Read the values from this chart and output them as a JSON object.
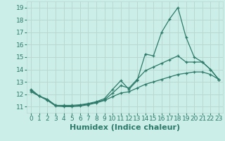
{
  "xlabel": "Humidex (Indice chaleur)",
  "bg_color": "#cceee8",
  "line_color": "#2d7a6a",
  "grid_color": "#b8d8d0",
  "xlim": [
    -0.5,
    23.5
  ],
  "ylim": [
    10.5,
    19.5
  ],
  "xticks": [
    0,
    1,
    2,
    3,
    4,
    5,
    6,
    7,
    8,
    9,
    10,
    11,
    12,
    13,
    14,
    15,
    16,
    17,
    18,
    19,
    20,
    21,
    22,
    23
  ],
  "yticks": [
    11,
    12,
    13,
    14,
    15,
    16,
    17,
    18,
    19
  ],
  "line1_x": [
    0,
    1,
    2,
    3,
    4,
    5,
    6,
    7,
    8,
    9,
    10,
    11,
    12,
    13,
    14,
    15,
    16,
    17,
    18,
    19,
    20,
    21,
    22,
    23
  ],
  "line1_y": [
    12.4,
    11.85,
    11.6,
    11.1,
    11.1,
    11.1,
    11.15,
    11.25,
    11.4,
    11.65,
    12.4,
    13.1,
    12.4,
    13.1,
    15.25,
    15.1,
    17.0,
    18.1,
    19.0,
    16.6,
    15.0,
    14.6,
    14.0,
    13.2
  ],
  "line2_x": [
    0,
    1,
    2,
    3,
    4,
    5,
    6,
    7,
    8,
    9,
    10,
    11,
    12,
    13,
    14,
    15,
    16,
    17,
    18,
    19,
    20,
    21,
    22,
    23
  ],
  "line2_y": [
    12.3,
    11.85,
    11.55,
    11.1,
    11.05,
    11.05,
    11.1,
    11.2,
    11.35,
    11.55,
    12.1,
    12.7,
    12.5,
    13.2,
    13.9,
    14.2,
    14.5,
    14.8,
    15.1,
    14.6,
    14.6,
    14.6,
    14.0,
    13.2
  ],
  "line3_x": [
    0,
    1,
    2,
    3,
    4,
    5,
    6,
    7,
    8,
    9,
    10,
    11,
    12,
    13,
    14,
    15,
    16,
    17,
    18,
    19,
    20,
    21,
    22,
    23
  ],
  "line3_y": [
    12.2,
    11.85,
    11.5,
    11.05,
    11.0,
    11.0,
    11.05,
    11.15,
    11.3,
    11.5,
    11.8,
    12.1,
    12.2,
    12.5,
    12.8,
    13.0,
    13.2,
    13.4,
    13.6,
    13.7,
    13.8,
    13.8,
    13.6,
    13.2
  ],
  "marker": "+",
  "markersize": 3,
  "linewidth": 0.9,
  "xlabel_fontsize": 8,
  "tick_fontsize": 6.5
}
